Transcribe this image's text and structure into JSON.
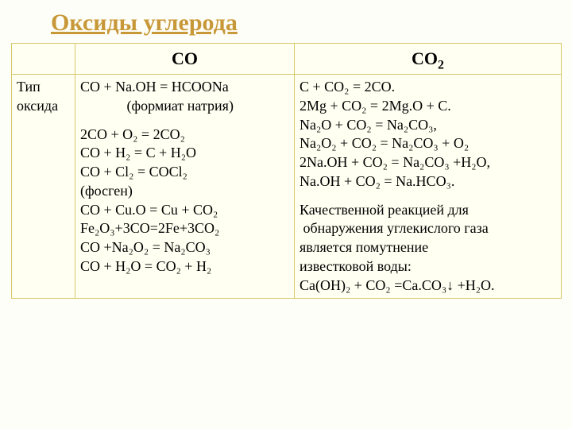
{
  "title": "Оксиды углерода",
  "header": {
    "blank": "",
    "co": "CO",
    "co2_pre": "CO",
    "co2_sub": "2"
  },
  "row": {
    "label_l1": "Тип",
    "label_l2": "оксида",
    "co": {
      "l1": "CO + Na.OH = HCOONa",
      "l2": "             (формиат натрия)",
      "l3": "2CO + O₂ = 2CO₂",
      "l4": "CO + H₂ = C + H₂O",
      "l5": "CO + Cl₂ = COCl₂",
      "l6": "(фосген)",
      "l7": "CO + Cu.O = Cu + CO₂",
      "l8": "Fe₂O₃+3CO=2Fe+3CO₂",
      "l9": "CO +Na₂O₂ = Na₂CO₃",
      "l10": "CO + H₂O = CO₂ + H₂"
    },
    "co2": {
      "l1": "C + CO₂ = 2CO.",
      "l2": "2Mg + CO₂ = 2Mg.O + C.",
      "l3": "Na₂O + CO₂ = Na₂CO₃,",
      "l4": "Na₂O₂ + CO₂ = Na₂CO₃ + O₂",
      "l5": "2Na.OH + CO₂ = Na₂CO₃ +H₂O,",
      "l6": "Na.OH + CO₂ = Na.HCO₃.",
      "l7": "Качественной реакцией для",
      "l8": " обнаружения углекислого газа",
      "l9": "является помутнение",
      "l10": "известковой воды:",
      "l11": "Ca(OH)₂ + CO₂ =Ca.CO₃↓ +H₂O."
    }
  }
}
